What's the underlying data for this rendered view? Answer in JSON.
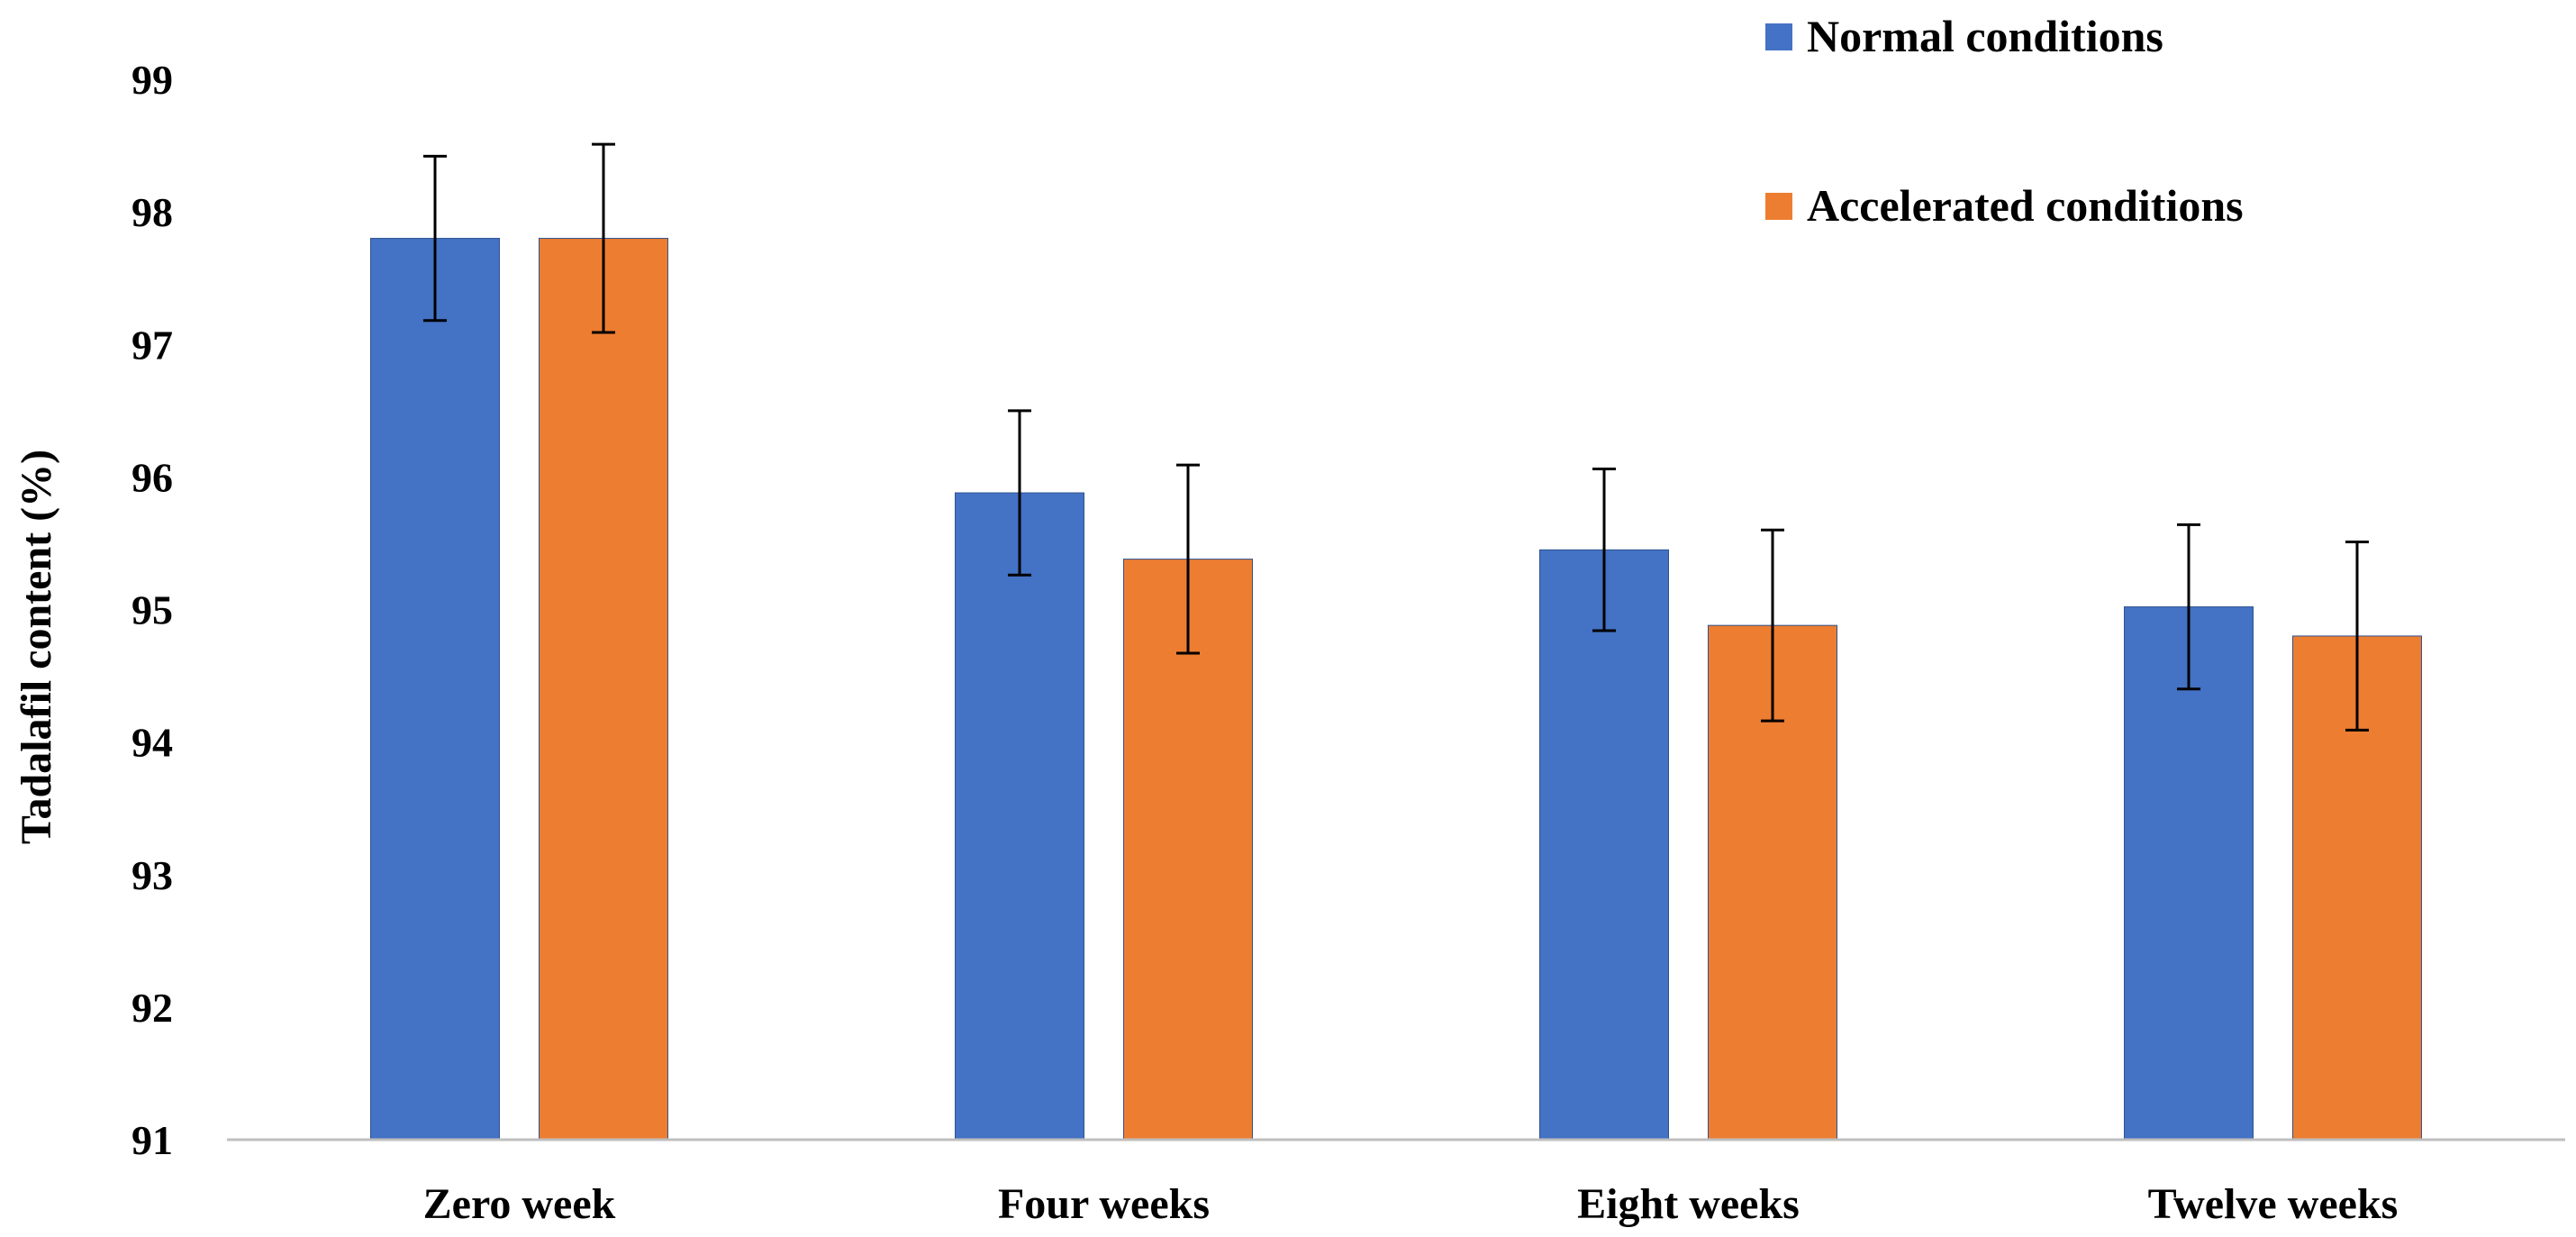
{
  "chart_data": {
    "type": "bar",
    "title": "",
    "xlabel": "",
    "ylabel": "Tadalafil content (%)",
    "ylim": [
      91,
      99
    ],
    "yticks": [
      91,
      92,
      93,
      94,
      95,
      96,
      97,
      98,
      99
    ],
    "grid": false,
    "legend_position": "top-right",
    "categories": [
      "Zero week",
      "Four weeks",
      "Eight weeks",
      "Twelve weeks"
    ],
    "series": [
      {
        "name": "Normal conditions",
        "color": "#4472C4",
        "values": [
          97.8,
          95.88,
          95.45,
          95.02
        ],
        "errors": [
          0.62,
          0.62,
          0.61,
          0.62
        ]
      },
      {
        "name": "Accelerated conditions",
        "color": "#ED7D31",
        "values": [
          97.8,
          95.38,
          94.88,
          94.8
        ],
        "errors": [
          0.71,
          0.71,
          0.72,
          0.71
        ]
      }
    ]
  }
}
